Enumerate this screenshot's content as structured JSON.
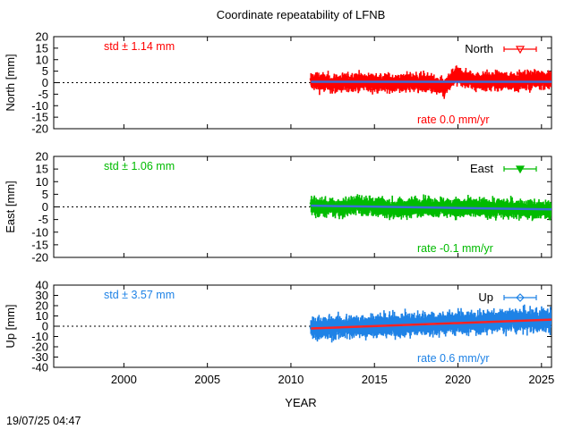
{
  "chart_data": {
    "type": "scatter",
    "title": "Coordinate repeatability of LFNB",
    "xlabel": "YEAR",
    "xlim": [
      1995.8,
      2025.6
    ],
    "xticks": [
      2000,
      2005,
      2010,
      2015,
      2020,
      2025
    ],
    "timestamp": "19/07/25 04:47",
    "panels": [
      {
        "name": "North",
        "ylabel": "North [mm]",
        "ylim": [
          -20,
          20
        ],
        "yticks": [
          -20,
          -15,
          -10,
          -5,
          0,
          5,
          10,
          15,
          20
        ],
        "color": "#ff0000",
        "std_label": "std ± 1.14 mm",
        "rate_label": "rate  0.0 mm/yr",
        "rate": 0.0,
        "trend_color": "#3a6fd8",
        "span": [
          2011.2,
          2025.6
        ],
        "noise": 1.8,
        "series": [
          {
            "x": 2011.3,
            "y": 0.5
          },
          {
            "x": 2012.5,
            "y": -0.5
          },
          {
            "x": 2014.0,
            "y": 0.3
          },
          {
            "x": 2016.0,
            "y": -0.2
          },
          {
            "x": 2018.0,
            "y": 0.4
          },
          {
            "x": 2019.2,
            "y": -2.5
          },
          {
            "x": 2019.8,
            "y": 3.0
          },
          {
            "x": 2021.0,
            "y": 0.8
          },
          {
            "x": 2023.0,
            "y": 0.5
          },
          {
            "x": 2025.0,
            "y": 1.5
          }
        ]
      },
      {
        "name": "East",
        "ylabel": "East [mm]",
        "ylim": [
          -20,
          20
        ],
        "yticks": [
          -20,
          -15,
          -10,
          -5,
          0,
          5,
          10,
          15,
          20
        ],
        "color": "#00bb00",
        "std_label": "std ± 1.06 mm",
        "rate_label": "rate -0.1 mm/yr",
        "rate": -0.1,
        "trend_color": "#3a6fd8",
        "span": [
          2011.2,
          2025.6
        ],
        "noise": 1.7,
        "series": [
          {
            "x": 2011.3,
            "y": 0.2
          },
          {
            "x": 2013.0,
            "y": -0.5
          },
          {
            "x": 2014.0,
            "y": 1.0
          },
          {
            "x": 2016.0,
            "y": -0.8
          },
          {
            "x": 2018.0,
            "y": 0.2
          },
          {
            "x": 2020.0,
            "y": -0.4
          },
          {
            "x": 2022.0,
            "y": -0.5
          },
          {
            "x": 2025.0,
            "y": -1.2
          }
        ]
      },
      {
        "name": "Up",
        "ylabel": "Up [mm]",
        "ylim": [
          -40,
          40
        ],
        "yticks": [
          -40,
          -30,
          -20,
          -10,
          0,
          10,
          20,
          30,
          40
        ],
        "color": "#1e82e6",
        "std_label": "std ± 3.57 mm",
        "rate_label": "rate  0.6 mm/yr",
        "rate": 0.6,
        "trend_color": "#ff2222",
        "span": [
          2011.2,
          2025.6
        ],
        "noise": 5.0,
        "series": [
          {
            "x": 2011.3,
            "y": -2.0
          },
          {
            "x": 2013.0,
            "y": -1.0
          },
          {
            "x": 2015.0,
            "y": 0.5
          },
          {
            "x": 2017.0,
            "y": 1.5
          },
          {
            "x": 2019.0,
            "y": 3.0
          },
          {
            "x": 2021.0,
            "y": 4.0
          },
          {
            "x": 2023.0,
            "y": 5.0
          },
          {
            "x": 2025.0,
            "y": 6.0
          }
        ]
      }
    ]
  }
}
